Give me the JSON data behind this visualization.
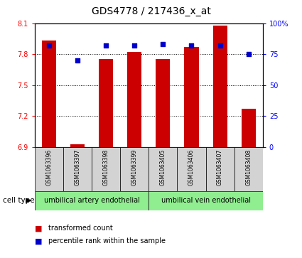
{
  "title": "GDS4778 / 217436_x_at",
  "samples": [
    "GSM1063396",
    "GSM1063397",
    "GSM1063398",
    "GSM1063399",
    "GSM1063405",
    "GSM1063406",
    "GSM1063407",
    "GSM1063408"
  ],
  "bar_values": [
    7.93,
    6.93,
    7.75,
    7.82,
    7.75,
    7.87,
    8.08,
    7.27
  ],
  "percentile_values": [
    82,
    70,
    82,
    82,
    83,
    82,
    82,
    75
  ],
  "ylim_left": [
    6.9,
    8.1
  ],
  "ylim_right": [
    0,
    100
  ],
  "yticks_left": [
    6.9,
    7.2,
    7.5,
    7.8,
    8.1
  ],
  "yticks_right": [
    0,
    25,
    50,
    75,
    100
  ],
  "ytick_labels_left": [
    "6.9",
    "7.2",
    "7.5",
    "7.8",
    "8.1"
  ],
  "ytick_labels_right": [
    "0",
    "25",
    "50",
    "75",
    "100%"
  ],
  "bar_color": "#cc0000",
  "dot_color": "#0000cc",
  "bar_width": 0.5,
  "group1_label": "umbilical artery endothelial",
  "group2_label": "umbilical vein endothelial",
  "group1_samples": [
    0,
    1,
    2,
    3
  ],
  "group2_samples": [
    4,
    5,
    6,
    7
  ],
  "cell_type_label": "cell type",
  "legend_bar_label": "transformed count",
  "legend_dot_label": "percentile rank within the sample",
  "group_bg_color": "#90ee90",
  "sample_box_color": "#d3d3d3",
  "grid_yticks": [
    7.8,
    7.5,
    7.2
  ],
  "background_color": "#ffffff"
}
